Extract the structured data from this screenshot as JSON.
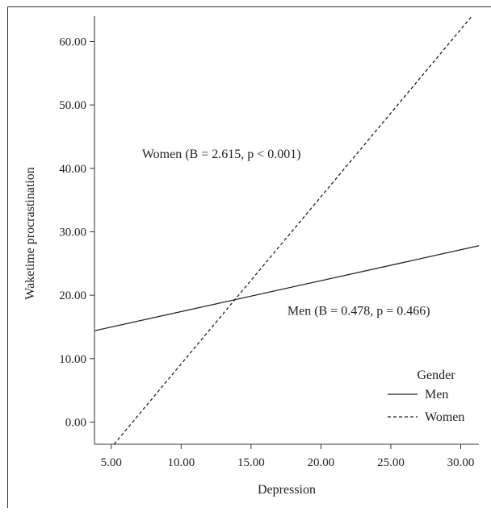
{
  "chart_data": {
    "type": "line",
    "xlabel": "Depression",
    "ylabel": "Waketime procrastination",
    "xlim": [
      3.8,
      31.3
    ],
    "ylim": [
      -3.5,
      64.0
    ],
    "x_ticks": [
      5,
      10,
      15,
      20,
      25,
      30
    ],
    "x_tick_labels": [
      "5.00",
      "10.00",
      "15.00",
      "20.00",
      "25.00",
      "30.00"
    ],
    "y_ticks": [
      0,
      10,
      20,
      30,
      40,
      50,
      60
    ],
    "y_tick_labels": [
      "0.00",
      "10.00",
      "20.00",
      "30.00",
      "40.00",
      "50.00",
      "60.00"
    ],
    "series": [
      {
        "name": "Men",
        "style": "solid",
        "color": "#222222",
        "x": [
          3.8,
          31.3
        ],
        "y": [
          14.4,
          27.8
        ]
      },
      {
        "name": "Women",
        "style": "dashed",
        "color": "#222222",
        "x": [
          5.2,
          30.8
        ],
        "y": [
          -3.5,
          64.0
        ]
      }
    ],
    "annotations": [
      {
        "text": "Women (B = 2.615, p < 0.001)",
        "x": 7.2,
        "y": 41.6
      },
      {
        "text": "Men (B = 0.478, p = 0.466)",
        "x": 17.6,
        "y": 16.9
      }
    ],
    "legend": {
      "title": "Gender",
      "placement": "bottom-right",
      "entries": [
        "Men",
        "Women"
      ]
    },
    "grid": false
  }
}
